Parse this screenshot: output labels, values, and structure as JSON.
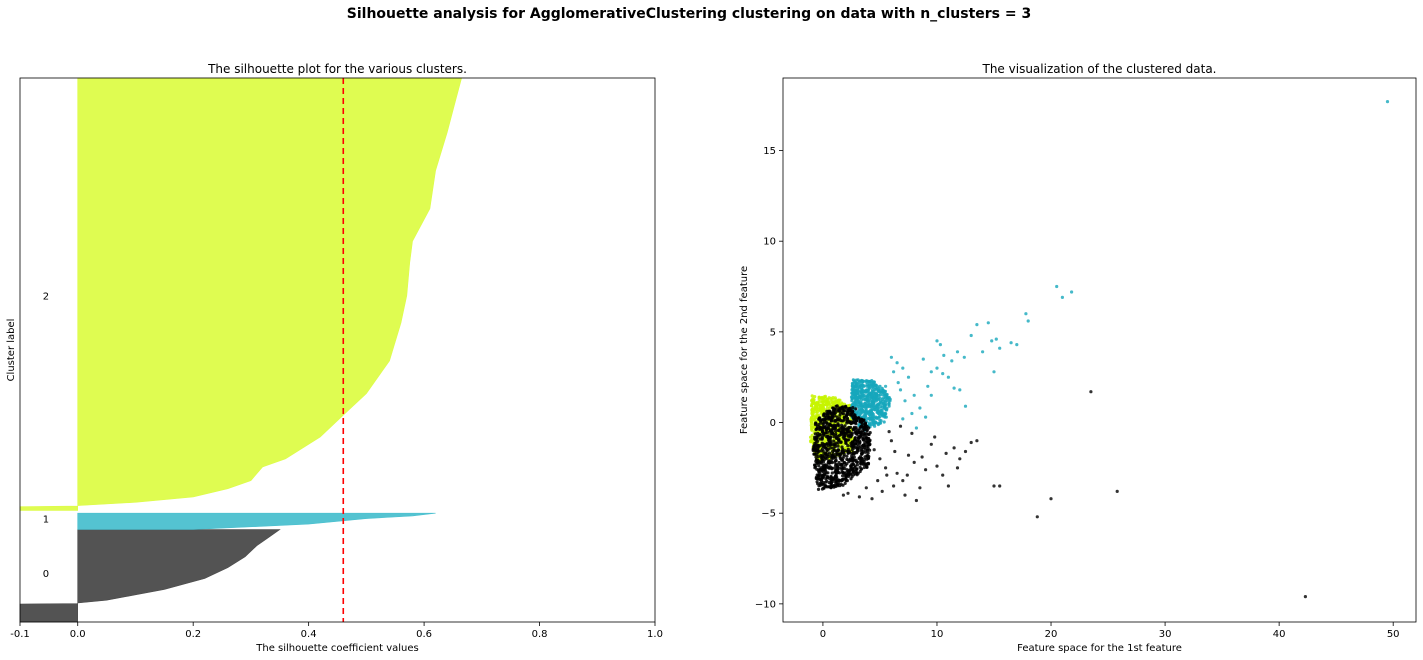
{
  "figure": {
    "suptitle": "Silhouette analysis for AgglomerativeClustering clustering on data with n_clusters = 3"
  },
  "chart_data": [
    {
      "type": "area",
      "title": "The silhouette plot for the various clusters.",
      "xlabel": "The silhouette coefficient values",
      "ylabel": "Cluster label",
      "xlim": [
        -0.1,
        1.0
      ],
      "ylim": [
        0,
        10
      ],
      "xticks": [
        -0.1,
        0.0,
        0.2,
        0.4,
        0.6,
        0.8,
        1.0
      ],
      "xtick_labels": [
        "-0.1",
        "0.0",
        "0.2",
        "0.4",
        "0.6",
        "0.8",
        "1.0"
      ],
      "average_silhouette": 0.46,
      "average_line_color": "#ff0000",
      "clusters": [
        {
          "label": "0",
          "label_y": 0.9,
          "color": "#4a4a4a",
          "y_start": 0.0,
          "y_end": 1.7,
          "profile_y": [
            0.0,
            0.33,
            0.34,
            0.35,
            0.4,
            0.5,
            0.6,
            0.8,
            1.0,
            1.2,
            1.4,
            1.55,
            1.7
          ],
          "profile_x": [
            -0.1,
            -0.1,
            0.0,
            0.0,
            0.05,
            0.1,
            0.15,
            0.22,
            0.26,
            0.29,
            0.31,
            0.33,
            0.35
          ]
        },
        {
          "label": "1",
          "label_y": 1.9,
          "color": "#4bc0cf",
          "y_start": 1.7,
          "y_end": 2.0,
          "profile_y": [
            1.7,
            1.8,
            1.9,
            1.95,
            2.0
          ],
          "profile_x": [
            0.2,
            0.4,
            0.5,
            0.58,
            0.62
          ]
        },
        {
          "label": "2",
          "label_y": 6.0,
          "color": "#ddfc48",
          "y_start": 2.05,
          "y_end": 10.0,
          "profile_y": [
            2.05,
            2.12,
            2.13,
            2.14,
            2.2,
            2.3,
            2.45,
            2.6,
            2.85,
            3.0,
            3.4,
            3.9,
            4.2,
            4.8,
            5.5,
            6.0,
            6.6,
            7.0,
            7.6,
            8.3,
            9.0,
            9.6,
            10.0
          ],
          "profile_x": [
            -0.1,
            -0.1,
            0.0,
            0.0,
            0.1,
            0.2,
            0.26,
            0.3,
            0.32,
            0.36,
            0.42,
            0.47,
            0.5,
            0.54,
            0.56,
            0.57,
            0.575,
            0.58,
            0.61,
            0.62,
            0.64,
            0.655,
            0.665
          ]
        }
      ]
    },
    {
      "type": "scatter",
      "title": "The visualization of the clustered data.",
      "xlabel": "Feature space for the 1st feature",
      "ylabel": "Feature space for the 2nd feature",
      "xlim": [
        -3.5,
        52
      ],
      "ylim": [
        -11,
        19
      ],
      "xticks": [
        0,
        10,
        20,
        30,
        40,
        50
      ],
      "xtick_labels": [
        "0",
        "10",
        "20",
        "30",
        "40",
        "50"
      ],
      "yticks": [
        -10,
        -5,
        0,
        5,
        10,
        15
      ],
      "ytick_labels": [
        "−10",
        "−5",
        "0",
        "5",
        "10",
        "15"
      ],
      "series": [
        {
          "cluster": "2",
          "color": "#c7f500",
          "dense_regions": [
            {
              "polygon": [
                [
                  -1.0,
                  1.5
                ],
                [
                  1.0,
                  1.4
                ],
                [
                  2.5,
                  0.9
                ],
                [
                  2.6,
                  -1.6
                ],
                [
                  -0.5,
                  -2.2
                ],
                [
                  -1.1,
                  -1.0
                ]
              ],
              "count": 700
            }
          ],
          "points": [
            [
              -0.5,
              0.8
            ],
            [
              0.2,
              1.2
            ],
            [
              1.5,
              1.0
            ]
          ]
        },
        {
          "cluster": "1",
          "color": "#16a7bc",
          "dense_regions": [
            {
              "polygon": [
                [
                  2.5,
                  2.4
                ],
                [
                  4.5,
                  2.3
                ],
                [
                  6.0,
                  1.5
                ],
                [
                  5.5,
                  0.0
                ],
                [
                  3.5,
                  -0.5
                ],
                [
                  2.5,
                  0.2
                ]
              ],
              "count": 500
            }
          ],
          "points": [
            [
              6.0,
              3.6
            ],
            [
              6.5,
              3.3
            ],
            [
              7.0,
              3.0
            ],
            [
              7.5,
              2.5
            ],
            [
              6.2,
              2.8
            ],
            [
              6.8,
              1.8
            ],
            [
              7.2,
              1.2
            ],
            [
              8.0,
              1.5
            ],
            [
              8.5,
              0.8
            ],
            [
              8.2,
              -0.3
            ],
            [
              7.8,
              0.5
            ],
            [
              9.0,
              0.3
            ],
            [
              9.5,
              1.5
            ],
            [
              10.0,
              4.5
            ],
            [
              10.3,
              4.3
            ],
            [
              10.0,
              3.0
            ],
            [
              10.5,
              2.7
            ],
            [
              11.0,
              2.5
            ],
            [
              11.5,
              1.9
            ],
            [
              12.0,
              1.8
            ],
            [
              12.5,
              0.9
            ],
            [
              9.5,
              2.8
            ],
            [
              9.2,
              2.0
            ],
            [
              8.8,
              3.5
            ],
            [
              10.6,
              3.7
            ],
            [
              11.3,
              3.4
            ],
            [
              11.8,
              3.9
            ],
            [
              12.4,
              3.6
            ],
            [
              13.0,
              4.8
            ],
            [
              13.5,
              5.4
            ],
            [
              14.0,
              3.9
            ],
            [
              14.5,
              5.5
            ],
            [
              14.8,
              4.5
            ],
            [
              15.0,
              2.8
            ],
            [
              15.2,
              4.6
            ],
            [
              15.5,
              4.1
            ],
            [
              16.5,
              4.4
            ],
            [
              17.0,
              4.3
            ],
            [
              17.8,
              6.0
            ],
            [
              18.0,
              5.6
            ],
            [
              20.5,
              7.5
            ],
            [
              21.0,
              6.9
            ],
            [
              21.8,
              7.2
            ],
            [
              49.5,
              17.7
            ],
            [
              5.5,
              2.0
            ],
            [
              6.6,
              2.2
            ],
            [
              5.8,
              0.9
            ],
            [
              7.0,
              0.2
            ]
          ]
        },
        {
          "cluster": "0",
          "color": "#000000",
          "dense_regions": [
            {
              "polygon": [
                [
                  -0.6,
                  0.2
                ],
                [
                  1.2,
                  1.0
                ],
                [
                  3.0,
                  0.8
                ],
                [
                  4.2,
                  -0.5
                ],
                [
                  4.0,
                  -2.5
                ],
                [
                  1.5,
                  -3.6
                ],
                [
                  -0.5,
                  -3.7
                ],
                [
                  -0.9,
                  -1.5
                ]
              ],
              "count": 900
            }
          ],
          "points": [
            [
              4.5,
              -1.5
            ],
            [
              5.0,
              -2.0
            ],
            [
              5.5,
              -2.5
            ],
            [
              6.0,
              -1.0
            ],
            [
              6.5,
              -2.8
            ],
            [
              7.0,
              -3.2
            ],
            [
              7.5,
              -1.8
            ],
            [
              8.0,
              -2.2
            ],
            [
              8.5,
              -3.6
            ],
            [
              9.0,
              -2.6
            ],
            [
              9.5,
              -1.2
            ],
            [
              10.0,
              -2.4
            ],
            [
              10.5,
              -2.9
            ],
            [
              11.0,
              -3.5
            ],
            [
              11.5,
              -1.4
            ],
            [
              12.0,
              -2.0
            ],
            [
              12.5,
              -1.6
            ],
            [
              13.0,
              -1.1
            ],
            [
              13.5,
              -1.0
            ],
            [
              15.0,
              -3.5
            ],
            [
              15.5,
              -3.5
            ],
            [
              20.0,
              -4.2
            ],
            [
              18.8,
              -5.2
            ],
            [
              23.5,
              1.7
            ],
            [
              25.8,
              -3.8
            ],
            [
              42.3,
              -9.6
            ],
            [
              5.2,
              -3.8
            ],
            [
              6.2,
              -3.5
            ],
            [
              7.2,
              -4.0
            ],
            [
              8.2,
              -4.3
            ],
            [
              4.8,
              -3.2
            ],
            [
              5.8,
              -0.5
            ],
            [
              6.8,
              -0.2
            ],
            [
              7.8,
              -0.6
            ],
            [
              3.2,
              -4.1
            ],
            [
              2.2,
              -3.9
            ],
            [
              1.8,
              -4.0
            ],
            [
              9.8,
              -0.8
            ],
            [
              10.8,
              -1.7
            ],
            [
              3.8,
              -3.6
            ],
            [
              4.3,
              -4.2
            ],
            [
              7.4,
              -2.9
            ],
            [
              8.7,
              -1.9
            ],
            [
              6.3,
              -1.6
            ],
            [
              5.6,
              -2.9
            ],
            [
              11.8,
              -2.5
            ]
          ]
        }
      ]
    }
  ]
}
